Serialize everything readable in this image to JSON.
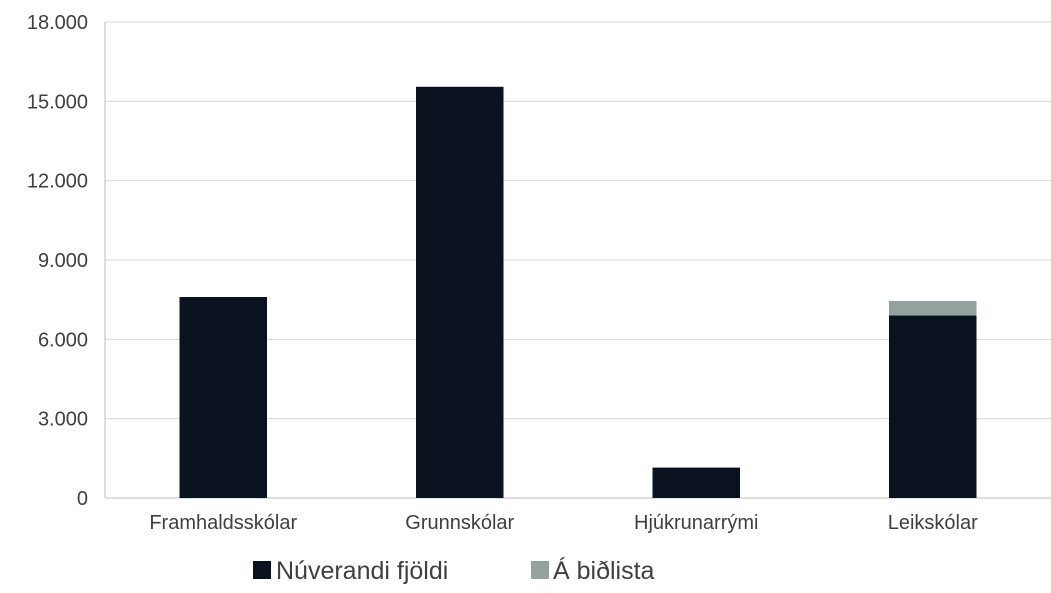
{
  "chart_data": {
    "type": "bar",
    "stacked": true,
    "categories": [
      "Framhaldsskólar",
      "Grunnskólar",
      "Hjúkrunarrými",
      "Leikskólar"
    ],
    "series": [
      {
        "name": "Núverandi fjöldi",
        "color": "#0a1220",
        "values": [
          7600,
          15550,
          1150,
          6900
        ]
      },
      {
        "name": "Á biðlista",
        "color": "#95a19e",
        "values": [
          0,
          0,
          0,
          550
        ]
      }
    ],
    "yticks": [
      "0",
      "3.000",
      "6.000",
      "9.000",
      "12.000",
      "15.000",
      "18.000"
    ],
    "ytick_values": [
      0,
      3000,
      6000,
      9000,
      12000,
      15000,
      18000
    ],
    "ylim": [
      0,
      18000
    ],
    "grid": true,
    "legend_position": "bottom",
    "title": "",
    "xlabel": "",
    "ylabel": ""
  }
}
